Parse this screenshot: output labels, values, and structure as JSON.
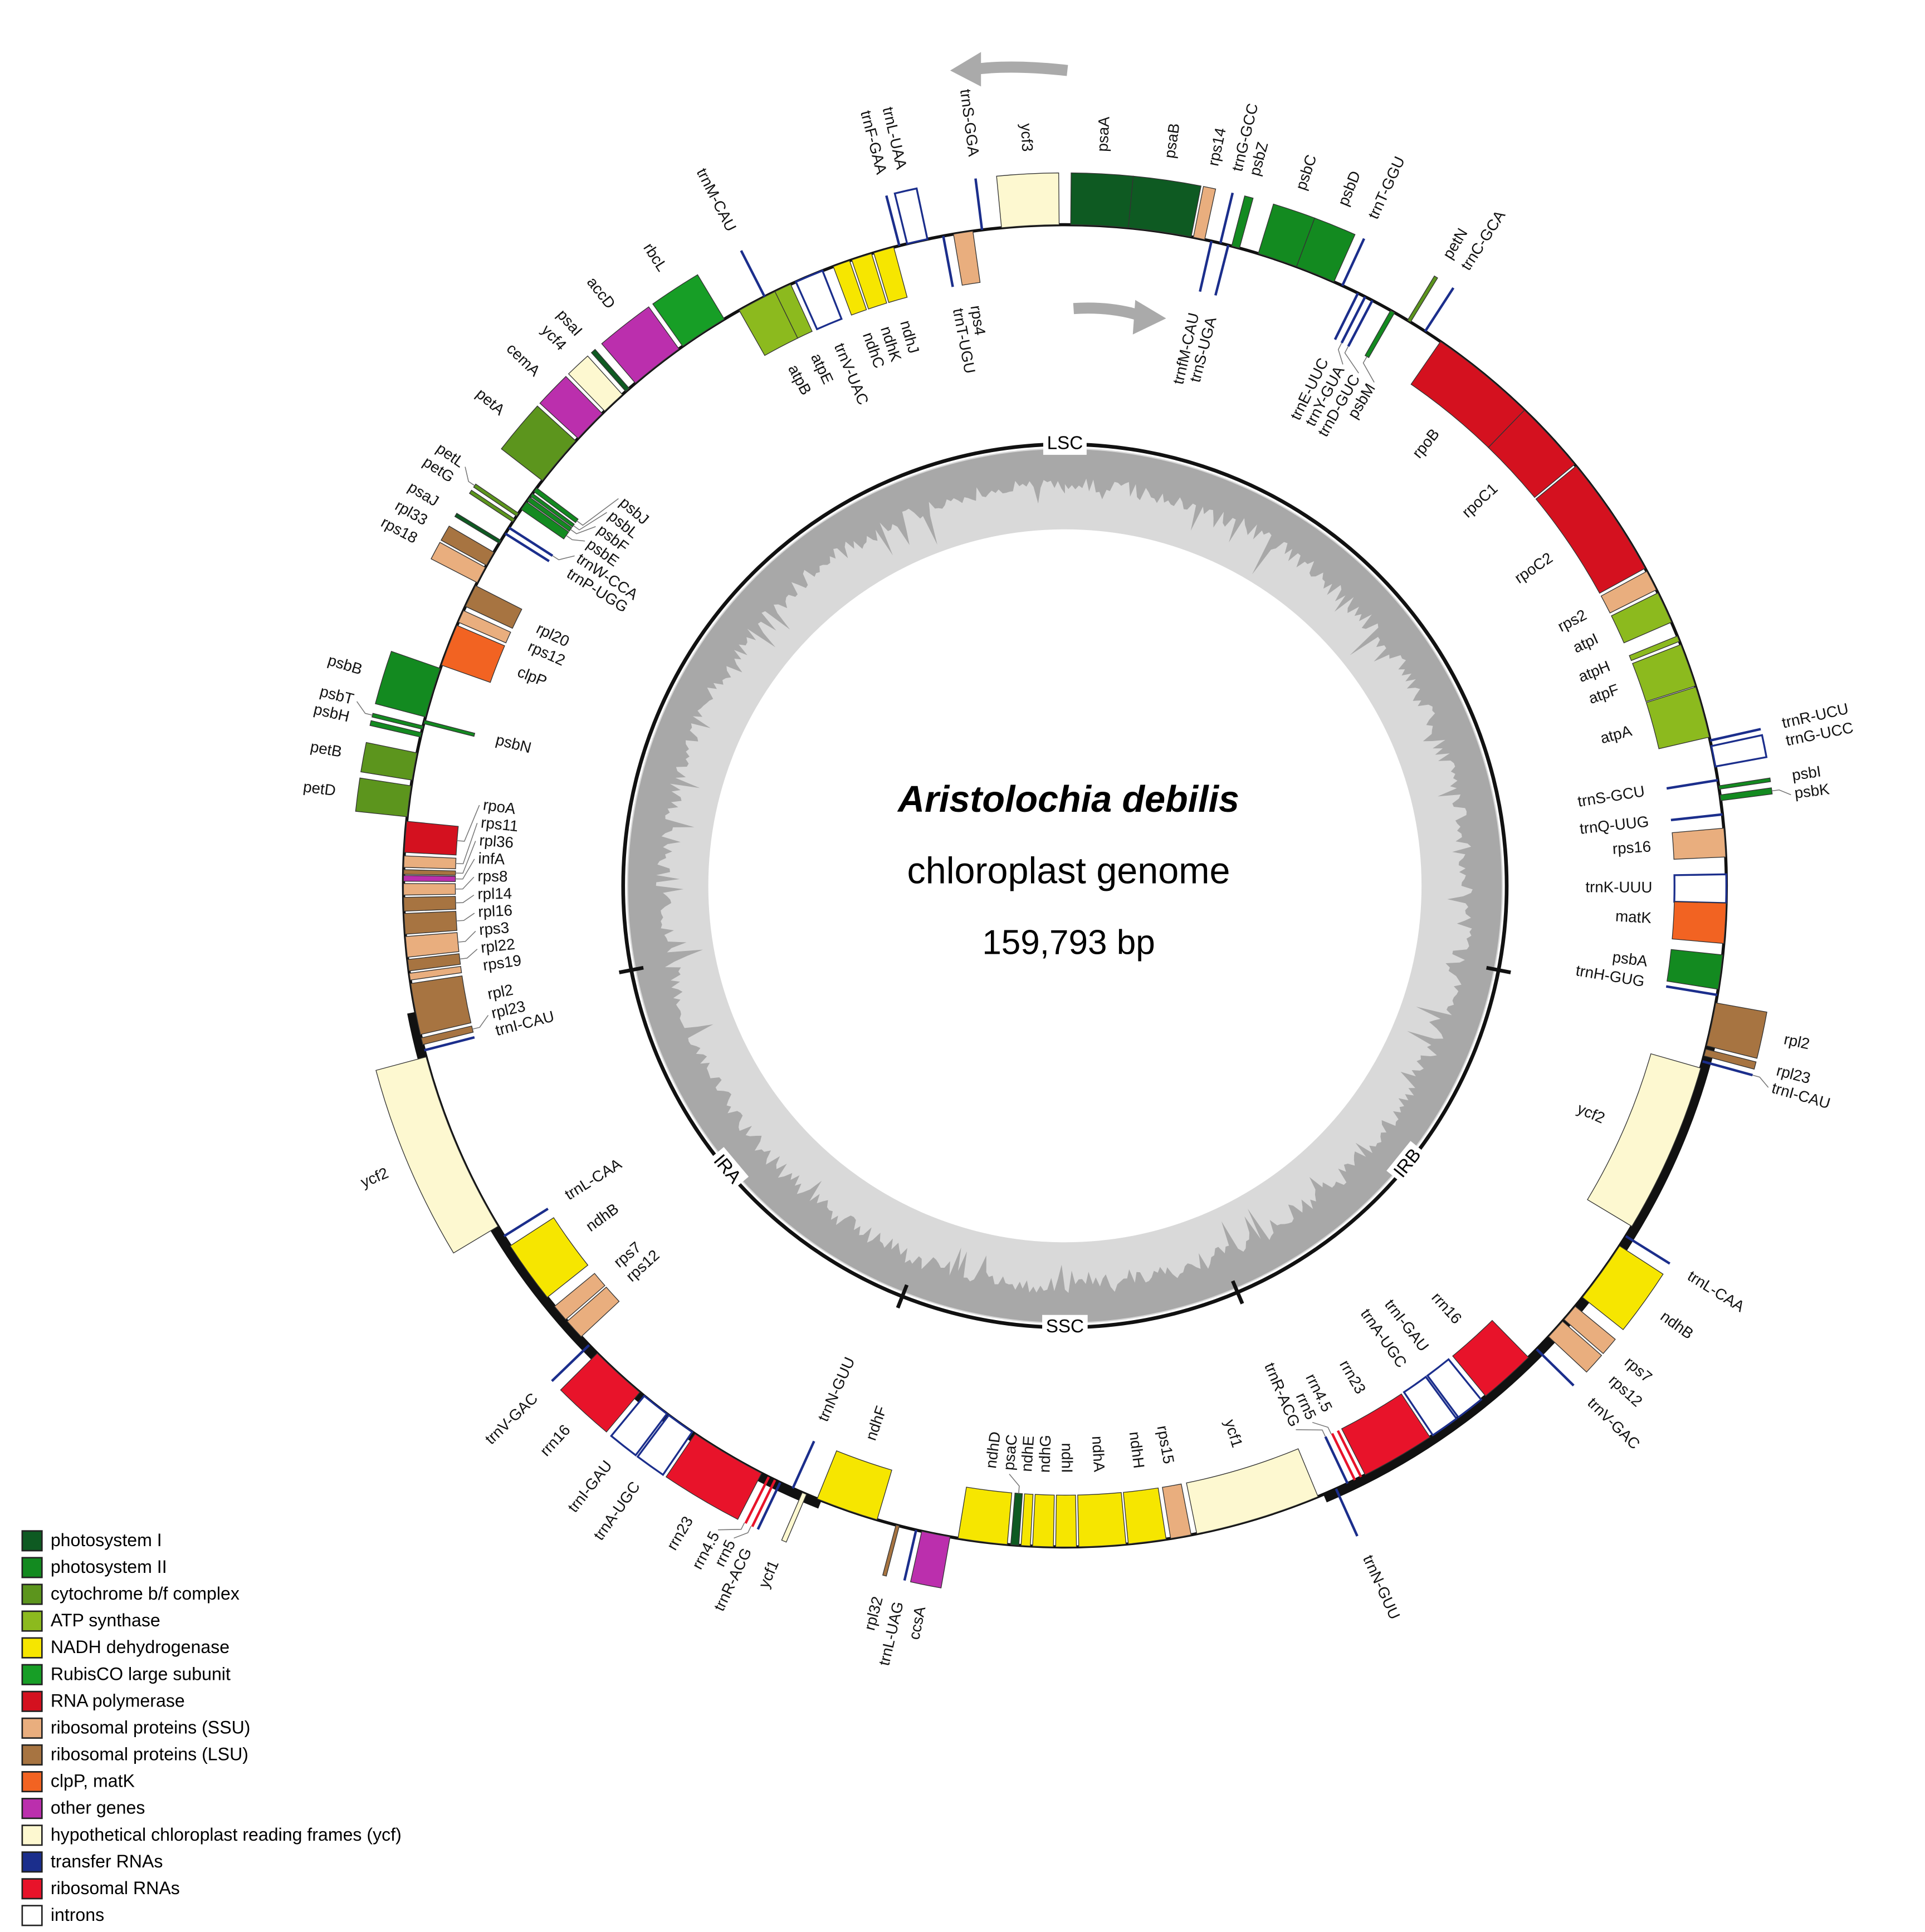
{
  "title": "Aristolochia debilis",
  "subtitle": "chloroplast genome",
  "size": "159,793 bp",
  "regions": [
    "LSC",
    "IRB",
    "SSC",
    "IRA"
  ],
  "genes": [
    "psaA",
    "psaB",
    "rps14",
    "trnfM-CAU",
    "trnG-GCC",
    "trnS-UGA",
    "psbZ",
    "psbC",
    "psbD",
    "trnT-GGU",
    "trnE-UUC",
    "trnY-GUA",
    "trnD-GUC",
    "psbM",
    "petN",
    "trnC-GCA",
    "rpoB",
    "rpoC1",
    "rpoC2",
    "rps2",
    "atpI",
    "atpH",
    "atpF",
    "atpA",
    "trnR-UCU",
    "trnG-UCC",
    "trnS-GCU",
    "psbI",
    "psbK",
    "trnQ-UUG",
    "rps16",
    "trnK-UUU",
    "matK",
    "psbA",
    "trnH-GUG",
    "rpl2",
    "rpl23",
    "trnI-CAU",
    "ycf2",
    "trnL-CAA",
    "ndhB",
    "rps7",
    "rps12",
    "trnV-GAC",
    "rrn16",
    "trnI-GAU",
    "trnA-UGC",
    "rrn23",
    "rrn4.5",
    "rrn5",
    "trnR-ACG",
    "trnN-GUU",
    "ycf1",
    "rps15",
    "ndhH",
    "ndhA",
    "ndhI",
    "ndhG",
    "ndhE",
    "psaC",
    "ndhD",
    "ccsA",
    "trnL-UAG",
    "rpl32",
    "ndhF",
    "ycf1",
    "trnN-GUU",
    "trnR-ACG",
    "rrn5",
    "rrn4.5",
    "rrn23",
    "trnA-UGC",
    "trnI-GAU",
    "rrn16",
    "trnV-GAC",
    "rps12",
    "rps7",
    "ndhB",
    "trnL-CAA",
    "ycf2",
    "trnI-CAU",
    "rpl23",
    "rpl2",
    "rps19",
    "rpl22",
    "rps3",
    "rpl16",
    "rpl14",
    "rps8",
    "infA",
    "rpl36",
    "rps11",
    "rpoA",
    "petD",
    "petB",
    "psbH",
    "psbT",
    "psbN",
    "psbB",
    "clpP",
    "rps12",
    "rpl20",
    "rps18",
    "rpl33",
    "psaJ",
    "trnP-UGG",
    "trnW-CCA",
    "petG",
    "petL",
    "psbE",
    "psbF",
    "psbL",
    "psbJ",
    "petA",
    "cemA",
    "ycf4",
    "psaI",
    "accD",
    "rbcL",
    "atpB",
    "atpE",
    "trnM-CAU",
    "trnV-UAC",
    "ndhC",
    "ndhK",
    "ndhJ",
    "trnF-GAA",
    "trnL-UAA",
    "trnT-UGU",
    "rps4",
    "trnS-GGA",
    "ycf3"
  ],
  "legend": [
    {
      "label": "photosystem I",
      "color": "#0e5a22"
    },
    {
      "label": "photosystem II",
      "color": "#138a20"
    },
    {
      "label": "cytochrome b/f complex",
      "color": "#5c951d"
    },
    {
      "label": "ATP synthase",
      "color": "#8cba1e"
    },
    {
      "label": "NADH dehydrogenase",
      "color": "#f6e600"
    },
    {
      "label": "RubisCO large subunit",
      "color": "#179e26"
    },
    {
      "label": "RNA polymerase",
      "color": "#d4111f"
    },
    {
      "label": "ribosomal proteins (SSU)",
      "color": "#e9ae7e"
    },
    {
      "label": "ribosomal proteins (LSU)",
      "color": "#a77441"
    },
    {
      "label": "clpP, matK",
      "color": "#f26322"
    },
    {
      "label": "other genes",
      "color": "#bb2fad"
    },
    {
      "label": "hypothetical chloroplast reading frames (ycf)",
      "color": "#fdf8d0"
    },
    {
      "label": "transfer RNAs",
      "color": "#1b2e8c"
    },
    {
      "label": "ribosomal RNAs",
      "color": "#e8132a"
    },
    {
      "label": "introns",
      "color": "#ffffff"
    }
  ]
}
